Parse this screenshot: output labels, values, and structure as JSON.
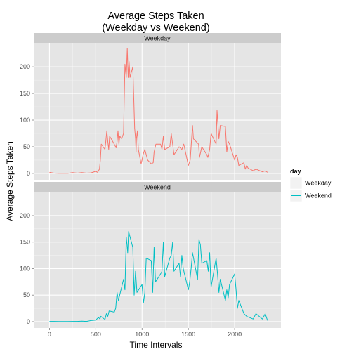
{
  "chart_data": {
    "type": "line",
    "title_lines": [
      "Average Steps Taken",
      "(Weekday vs Weekend)"
    ],
    "xlabel": "Time Intervals",
    "ylabel": "Average Steps Taken",
    "xlim": [
      -170,
      2500
    ],
    "ylim": [
      -12,
      245
    ],
    "x_ticks": [
      0,
      500,
      1000,
      1500,
      2000
    ],
    "y_ticks": [
      0,
      50,
      100,
      150,
      200
    ],
    "grid": true,
    "legend": {
      "title": "day",
      "position": "right"
    },
    "colors": {
      "Weekday": "#F8766D",
      "Weekend": "#00BFC4",
      "panel_bg": "#E5E5E5",
      "strip_bg": "#CCCCCC",
      "grid": "#FFFFFF"
    },
    "panels": [
      {
        "strip": "Weekday",
        "series": {
          "name": "Weekday",
          "x": [
            0,
            50,
            100,
            150,
            200,
            250,
            300,
            350,
            400,
            450,
            500,
            520,
            540,
            550,
            560,
            600,
            620,
            630,
            640,
            650,
            700,
            720,
            730,
            740,
            750,
            760,
            780,
            800,
            815,
            830,
            840,
            850,
            860,
            870,
            900,
            905,
            920,
            930,
            935,
            940,
            950,
            960,
            990,
            1000,
            1010,
            1030,
            1060,
            1100,
            1120,
            1130,
            1150,
            1170,
            1200,
            1215,
            1230,
            1245,
            1300,
            1315,
            1330,
            1345,
            1400,
            1430,
            1450,
            1500,
            1520,
            1545,
            1555,
            1610,
            1620,
            1645,
            1700,
            1710,
            1730,
            1745,
            1800,
            1810,
            1830,
            1845,
            1900,
            1915,
            1930,
            1945,
            2000,
            2015,
            2030,
            2045,
            2100,
            2115,
            2130,
            2145,
            2200,
            2230,
            2300,
            2330,
            2355
          ],
          "y": [
            2,
            0.5,
            0.2,
            0.3,
            0.1,
            1.5,
            0.5,
            1.5,
            0.5,
            1,
            4,
            2,
            8,
            25,
            55,
            45,
            80,
            60,
            45,
            70,
            55,
            48,
            60,
            80,
            55,
            70,
            65,
            75,
            205,
            180,
            235,
            180,
            210,
            180,
            200,
            175,
            85,
            65,
            40,
            65,
            80,
            45,
            18,
            25,
            35,
            45,
            25,
            18,
            20,
            40,
            55,
            55,
            55,
            45,
            70,
            45,
            50,
            75,
            55,
            35,
            50,
            45,
            55,
            15,
            25,
            90,
            65,
            55,
            30,
            50,
            35,
            30,
            45,
            75,
            55,
            118,
            65,
            90,
            88,
            40,
            60,
            55,
            25,
            35,
            30,
            15,
            20,
            8,
            15,
            10,
            5,
            8,
            3,
            5,
            2
          ]
        }
      },
      {
        "strip": "Weekend",
        "series": {
          "name": "Weekend",
          "x": [
            0,
            50,
            100,
            150,
            200,
            250,
            300,
            350,
            400,
            450,
            500,
            530,
            545,
            555,
            600,
            615,
            630,
            645,
            700,
            715,
            730,
            745,
            800,
            815,
            830,
            845,
            855,
            900,
            915,
            930,
            945,
            1000,
            1015,
            1030,
            1045,
            1100,
            1115,
            1130,
            1145,
            1200,
            1215,
            1230,
            1245,
            1300,
            1315,
            1330,
            1345,
            1400,
            1415,
            1430,
            1445,
            1500,
            1515,
            1530,
            1545,
            1600,
            1615,
            1630,
            1645,
            1700,
            1715,
            1730,
            1745,
            1800,
            1815,
            1830,
            1845,
            1900,
            1915,
            1930,
            1945,
            2000,
            2015,
            2030,
            2045,
            2100,
            2130,
            2200,
            2230,
            2300,
            2330,
            2355
          ],
          "y": [
            0.5,
            0.5,
            0.2,
            0.3,
            0.2,
            0.5,
            0.5,
            1,
            0.5,
            2,
            3,
            8,
            5,
            10,
            4,
            15,
            10,
            20,
            18,
            25,
            55,
            40,
            80,
            60,
            160,
            130,
            170,
            140,
            50,
            95,
            55,
            70,
            35,
            55,
            120,
            115,
            55,
            140,
            75,
            90,
            95,
            150,
            85,
            120,
            125,
            150,
            95,
            110,
            85,
            125,
            100,
            60,
            75,
            100,
            130,
            80,
            155,
            145,
            110,
            115,
            95,
            130,
            65,
            120,
            90,
            55,
            80,
            40,
            60,
            45,
            70,
            90,
            60,
            25,
            40,
            15,
            10,
            5,
            15,
            5,
            15,
            2
          ]
        }
      }
    ]
  }
}
